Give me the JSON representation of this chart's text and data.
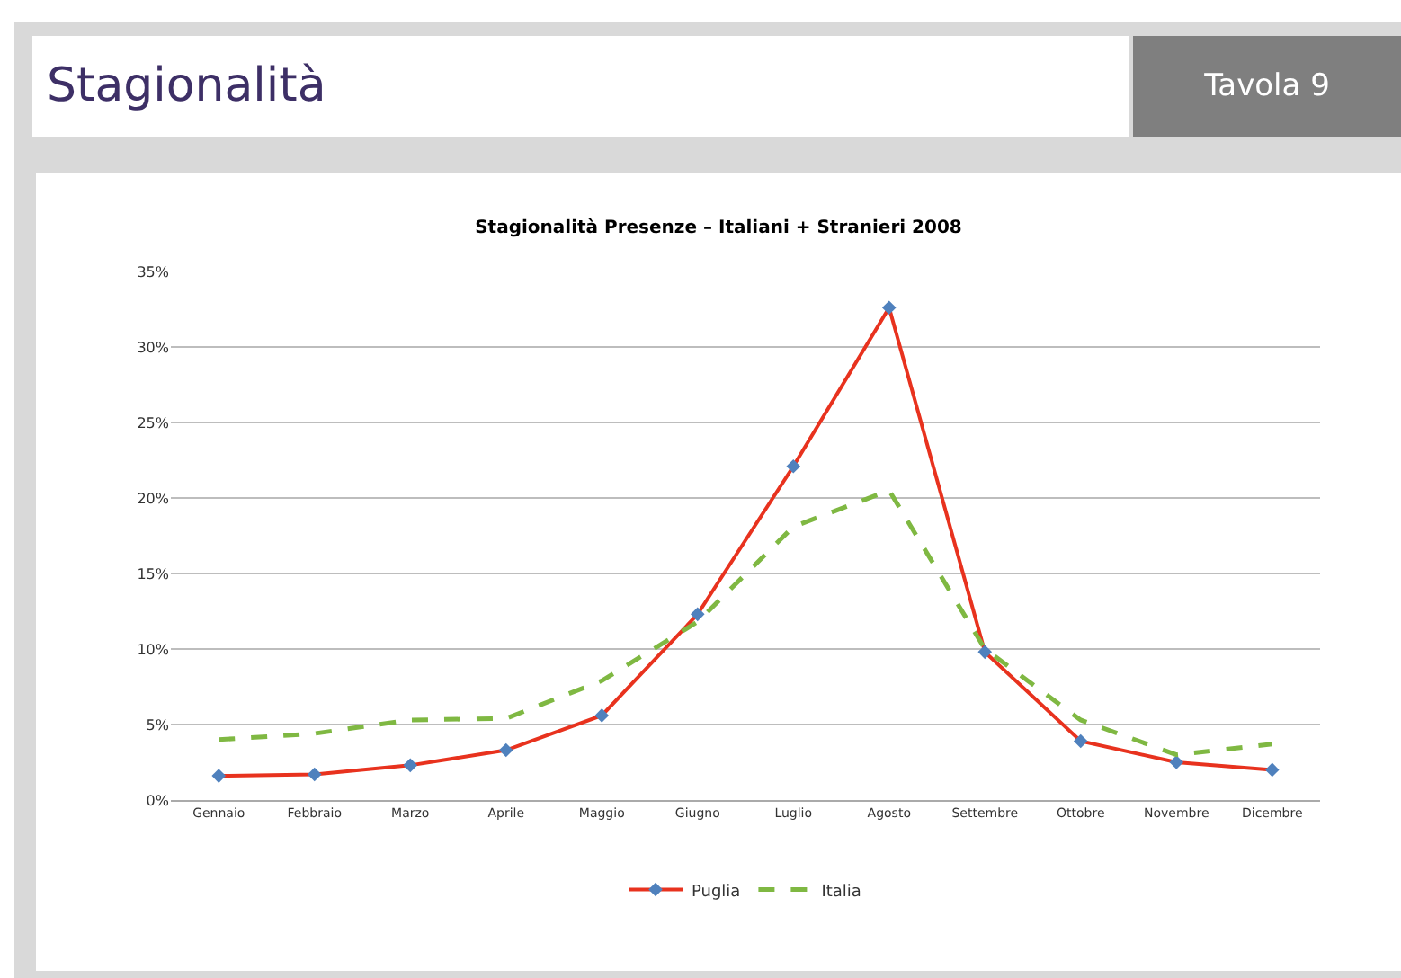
{
  "chart_data": {
    "type": "line",
    "title": "Stagionalità Presenze – Italiani + Stranieri 2008",
    "annotations": [
      "Stagionalità",
      "Tavola 9"
    ],
    "categories": [
      "Gennaio",
      "Febbraio",
      "Marzo",
      "Aprile",
      "Maggio",
      "Giugno",
      "Luglio",
      "Agosto",
      "Settembre",
      "Ottobre",
      "Novembre",
      "Dicembre"
    ],
    "series": [
      {
        "name": "Puglia",
        "color": "#e8321e",
        "line_style": "solid",
        "marker": "diamond",
        "values": [
          1.6,
          1.7,
          2.3,
          3.3,
          5.6,
          12.3,
          22.1,
          32.6,
          9.8,
          3.9,
          2.5,
          2.0
        ]
      },
      {
        "name": "Italia",
        "color": "#7fb842",
        "line_style": "dashed",
        "marker": "none",
        "values": [
          4.0,
          4.4,
          5.3,
          5.4,
          7.9,
          11.8,
          18.1,
          20.5,
          10.0,
          5.3,
          3.0,
          3.7
        ]
      }
    ],
    "ylim": [
      0,
      35
    ],
    "yticks": [
      {
        "value": 0,
        "label": "0%"
      },
      {
        "value": 5,
        "label": "5%"
      },
      {
        "value": 10,
        "label": "10%"
      },
      {
        "value": 15,
        "label": "15%"
      },
      {
        "value": 20,
        "label": "20%"
      },
      {
        "value": 25,
        "label": "25%"
      },
      {
        "value": 30,
        "label": "30%"
      },
      {
        "value": 35,
        "label": "35%"
      }
    ],
    "grid": "y",
    "legend": "bottom"
  }
}
